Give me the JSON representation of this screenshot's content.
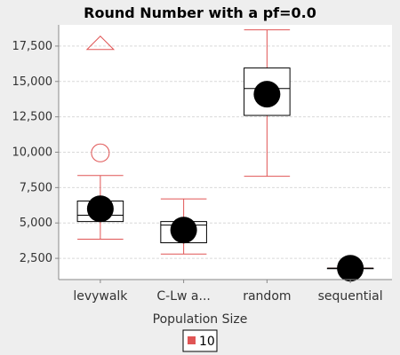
{
  "chart_data": {
    "type": "box",
    "title": "Round Number with a pf=0.0",
    "xlabel": "Population Size",
    "ylabel": "",
    "ylim": [
      1000,
      19000
    ],
    "yticks": [
      2500,
      5000,
      7500,
      10000,
      12500,
      15000,
      17500
    ],
    "ytick_labels": [
      "2,500",
      "5,000",
      "7,500",
      "10,000",
      "12,500",
      "15,000",
      "17,500"
    ],
    "grid": true,
    "categories": [
      "levywalk",
      "C-Lw a...",
      "random",
      "sequential"
    ],
    "series": [
      {
        "name": "10",
        "color": "#e05555",
        "boxes": [
          {
            "category": "levywalk",
            "whisker_low": 3850,
            "q1": 5100,
            "median": 5550,
            "q3": 6550,
            "whisker_high": 8350,
            "mean": 6000,
            "outliers": [
              9950
            ],
            "far_outliers": [
              17700
            ]
          },
          {
            "category": "C-Lw a...",
            "whisker_low": 2800,
            "q1": 3600,
            "median": 4850,
            "q3": 5100,
            "whisker_high": 6700,
            "mean": 4500,
            "outliers": [],
            "far_outliers": []
          },
          {
            "category": "random",
            "whisker_low": 8300,
            "q1": 12600,
            "median": 14500,
            "q3": 15950,
            "whisker_high": 18650,
            "mean": 14100,
            "outliers": [],
            "far_outliers": []
          },
          {
            "category": "sequential",
            "whisker_low": 1800,
            "q1": 1800,
            "median": 1800,
            "q3": 1800,
            "whisker_high": 1800,
            "mean": 1800,
            "outliers": [],
            "far_outliers": []
          }
        ]
      }
    ],
    "legend": {
      "title": "Population Size",
      "entries": [
        "10"
      ],
      "placement": "bottom"
    },
    "colors": {
      "whisker": "#e05555",
      "box_edge": "#000000",
      "mean_marker": "#000000",
      "grid": "#d9d9d9",
      "plot_bg": "#ffffff",
      "page_bg": "#eeeeee"
    }
  }
}
